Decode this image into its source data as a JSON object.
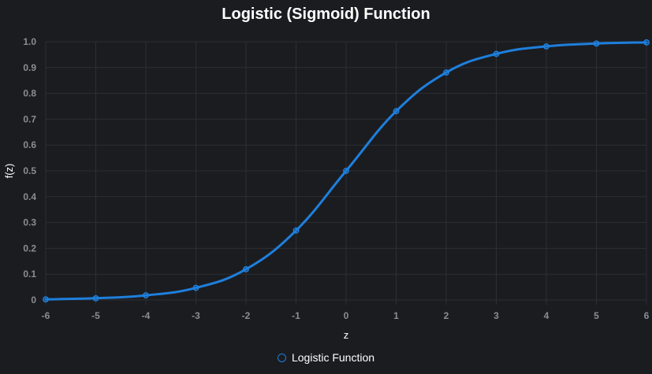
{
  "chart_data": {
    "type": "line",
    "title": "Logistic (Sigmoid) Function",
    "xlabel": "z",
    "ylabel": "f(z)",
    "xlim": [
      -6,
      6
    ],
    "ylim": [
      0,
      1
    ],
    "x_ticks": [
      -6,
      -5,
      -4,
      -3,
      -2,
      -1,
      0,
      1,
      2,
      3,
      4,
      5,
      6
    ],
    "y_ticks": [
      0,
      0.1,
      0.2,
      0.3,
      0.4,
      0.5,
      0.6,
      0.7,
      0.8,
      0.9,
      1.0
    ],
    "y_tick_labels": [
      "0",
      "0.1",
      "0.2",
      "0.3",
      "0.4",
      "0.5",
      "0.6",
      "0.7",
      "0.8",
      "0.9",
      "1.0"
    ],
    "grid": true,
    "legend_position": "bottom",
    "series": [
      {
        "name": "Logistic Function",
        "color": "#1e7fdc",
        "x": [
          -6,
          -5,
          -4,
          -3,
          -2,
          -1,
          0,
          1,
          2,
          3,
          4,
          5,
          6
        ],
        "values": [
          0.0025,
          0.0067,
          0.018,
          0.047,
          0.119,
          0.269,
          0.5,
          0.731,
          0.881,
          0.953,
          0.982,
          0.993,
          0.9975
        ]
      }
    ]
  },
  "colors": {
    "background": "#1b1c20",
    "grid": "#2c2e33",
    "axis_text": "#8a8d93",
    "text": "#ffffff",
    "series": "#1e7fdc"
  }
}
